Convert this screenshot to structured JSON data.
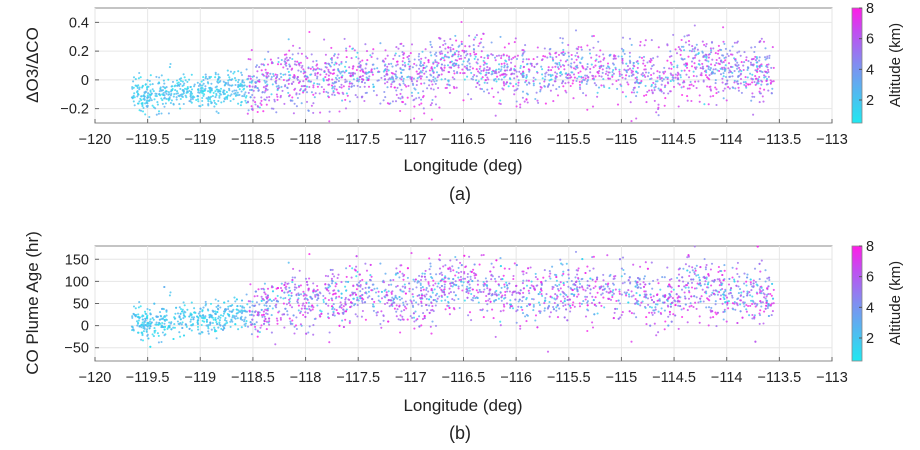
{
  "figure": {
    "panels": [
      {
        "caption": "(a)"
      },
      {
        "caption": "(b)"
      }
    ]
  },
  "chart_data": [
    {
      "type": "scatter",
      "panel": "(a)",
      "xlabel": "Longitude (deg)",
      "ylabel": "ΔO3/ΔCO",
      "xlim": [
        -120,
        -113
      ],
      "ylim": [
        -0.3,
        0.5
      ],
      "xticks": [
        -120,
        -119.5,
        -119,
        -118.5,
        -118,
        -117.5,
        -117,
        -116.5,
        -116,
        -115.5,
        -115,
        -114.5,
        -114,
        -113.5,
        -113
      ],
      "xtick_labels": [
        "−120",
        "−119.5",
        "−119",
        "−118.5",
        "−118",
        "−117.5",
        "−117",
        "−116.5",
        "−116",
        "−115.5",
        "−115",
        "−114.5",
        "−114",
        "−113.5",
        "−113"
      ],
      "yticks": [
        -0.2,
        0,
        0.2,
        0.4
      ],
      "ytick_labels": [
        "−0.2",
        "0",
        "0.2",
        "0.4"
      ],
      "grid": true,
      "color_by": "altitude",
      "colorbar": {
        "label": "Altitude (km)",
        "range": [
          0.5,
          8
        ],
        "ticks": [
          2,
          4,
          6,
          8
        ],
        "tick_labels": [
          "2",
          "4",
          "6",
          "8"
        ],
        "colormap": [
          "#20e8f0",
          "#c34cf0",
          "#ff1ce6"
        ]
      },
      "x_range_observed": [
        -119.65,
        -113.55
      ],
      "trend": [
        {
          "x": -119.6,
          "y": -0.1
        },
        {
          "x": -119.0,
          "y": -0.08
        },
        {
          "x": -118.6,
          "y": -0.05
        },
        {
          "x": -118.2,
          "y": 0.0
        },
        {
          "x": -117.5,
          "y": 0.03
        },
        {
          "x": -117.0,
          "y": 0.02
        },
        {
          "x": -116.5,
          "y": 0.12
        },
        {
          "x": -116.0,
          "y": 0.03
        },
        {
          "x": -115.5,
          "y": 0.08
        },
        {
          "x": -115.0,
          "y": 0.05
        },
        {
          "x": -114.6,
          "y": 0.0
        },
        {
          "x": -114.3,
          "y": 0.12
        },
        {
          "x": -114.0,
          "y": 0.06
        },
        {
          "x": -113.6,
          "y": 0.05
        }
      ]
    },
    {
      "type": "scatter",
      "panel": "(b)",
      "xlabel": "Longitude (deg)",
      "ylabel": "CO Plume Age (hr)",
      "xlim": [
        -120,
        -113
      ],
      "ylim": [
        -80,
        180
      ],
      "xticks": [
        -120,
        -119.5,
        -119,
        -118.5,
        -118,
        -117.5,
        -117,
        -116.5,
        -116,
        -115.5,
        -115,
        -114.5,
        -114,
        -113.5,
        -113
      ],
      "xtick_labels": [
        "−120",
        "−119.5",
        "−119",
        "−118.5",
        "−118",
        "−117.5",
        "−117",
        "−116.5",
        "−116",
        "−115.5",
        "−115",
        "−114.5",
        "−114",
        "−113.5",
        "−113"
      ],
      "yticks": [
        -50,
        0,
        50,
        100,
        150
      ],
      "ytick_labels": [
        "−50",
        "0",
        "50",
        "100",
        "150"
      ],
      "grid": true,
      "color_by": "altitude",
      "colorbar": {
        "label": "Altitude (km)",
        "range": [
          0.5,
          8
        ],
        "ticks": [
          2,
          4,
          6,
          8
        ],
        "tick_labels": [
          "2",
          "4",
          "6",
          "8"
        ],
        "colormap": [
          "#20e8f0",
          "#c34cf0",
          "#ff1ce6"
        ]
      },
      "x_range_observed": [
        -119.65,
        -113.55
      ],
      "trend": [
        {
          "x": -119.6,
          "y": 5
        },
        {
          "x": -119.0,
          "y": 15
        },
        {
          "x": -118.6,
          "y": 30
        },
        {
          "x": -118.2,
          "y": 50
        },
        {
          "x": -117.5,
          "y": 70
        },
        {
          "x": -117.0,
          "y": 60
        },
        {
          "x": -116.5,
          "y": 95
        },
        {
          "x": -116.0,
          "y": 65
        },
        {
          "x": -115.5,
          "y": 80
        },
        {
          "x": -115.0,
          "y": 75
        },
        {
          "x": -114.6,
          "y": 50
        },
        {
          "x": -114.3,
          "y": 95
        },
        {
          "x": -114.0,
          "y": 75
        },
        {
          "x": -113.6,
          "y": 70
        }
      ]
    }
  ]
}
